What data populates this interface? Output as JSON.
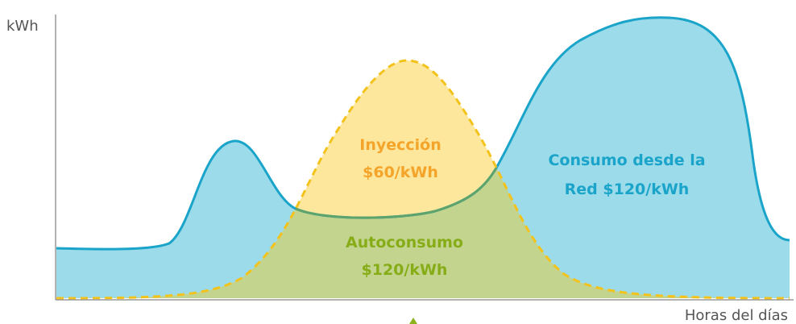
{
  "axes": {
    "y_label": "kWh",
    "x_label": "Horas del días"
  },
  "regions": {
    "injection": {
      "lines": [
        "Inyección",
        "$60/kWh"
      ]
    },
    "grid": {
      "lines": [
        "Consumo desde la",
        "Red $120/kWh"
      ]
    },
    "self_consumption": {
      "lines": [
        "Autoconsumo",
        "$120/kWh"
      ]
    }
  }
}
